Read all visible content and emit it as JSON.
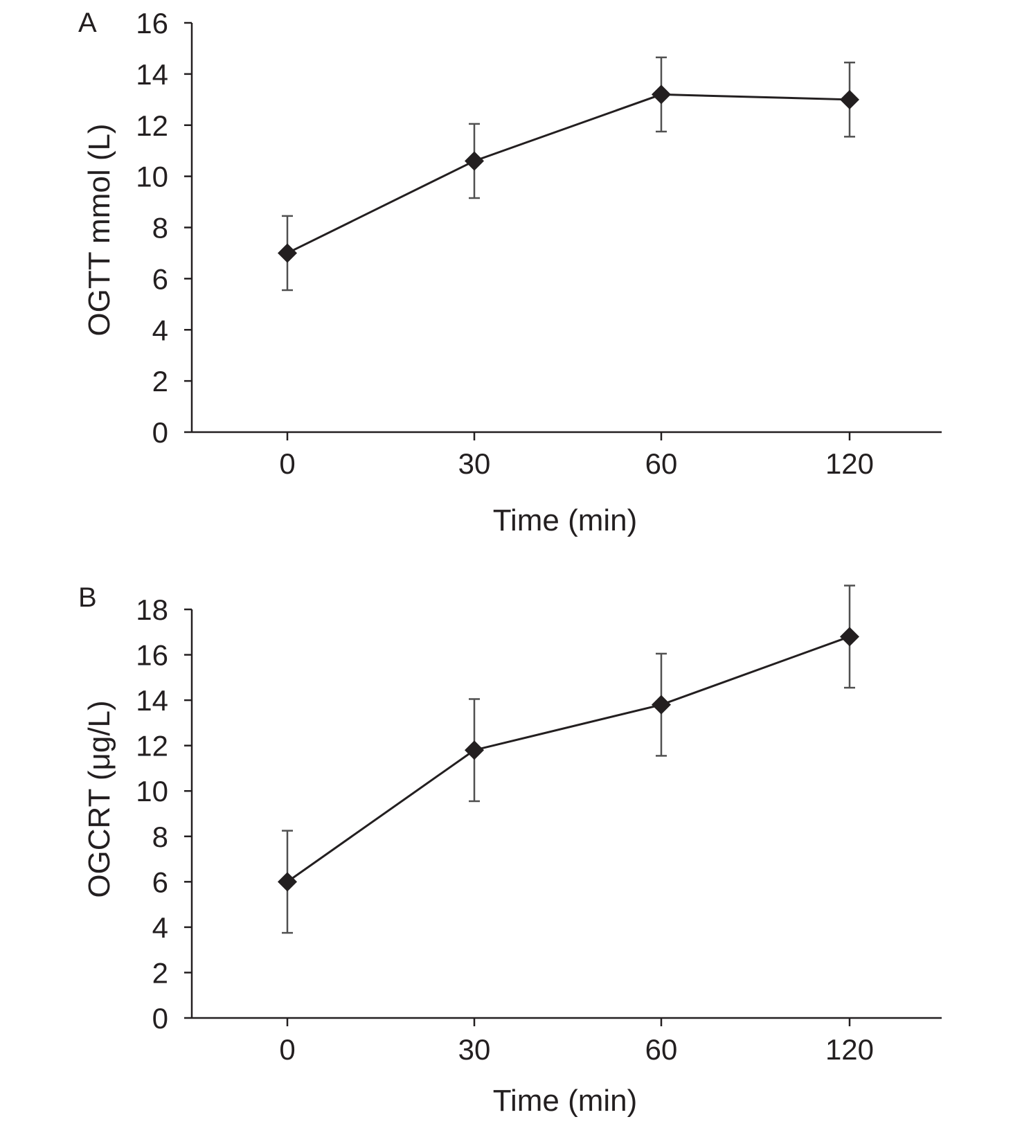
{
  "chart_data": [
    {
      "type": "line",
      "panel_label": "A",
      "categories": [
        "0",
        "30",
        "60",
        "120"
      ],
      "series": [
        {
          "values": [
            7.0,
            10.6,
            13.2,
            13.0
          ],
          "error": [
            1.45,
            1.45,
            1.45,
            1.45
          ]
        }
      ],
      "xlabel": "Time (min)",
      "ylabel": "OGTT mmol (L)",
      "ylim": [
        0,
        16
      ],
      "yticks": [
        "0",
        "2",
        "4",
        "6",
        "8",
        "10",
        "12",
        "14",
        "16"
      ],
      "marker": "diamond",
      "grid": false,
      "legend": "none",
      "colors": {
        "line": "#231f20",
        "marker": "#231f20",
        "error_bar": "#505050"
      }
    },
    {
      "type": "line",
      "panel_label": "B",
      "categories": [
        "0",
        "30",
        "60",
        "120"
      ],
      "series": [
        {
          "values": [
            6.0,
            11.8,
            13.8,
            16.8
          ],
          "error": [
            2.25,
            2.25,
            2.25,
            2.25
          ]
        }
      ],
      "xlabel": "Time (min)",
      "ylabel": "OGCRT (μg/L)",
      "ylim": [
        0,
        18
      ],
      "yticks": [
        "0",
        "2",
        "4",
        "6",
        "8",
        "10",
        "12",
        "14",
        "16",
        "18"
      ],
      "marker": "diamond",
      "grid": false,
      "legend": "none",
      "colors": {
        "line": "#231f20",
        "marker": "#231f20",
        "error_bar": "#505050"
      }
    }
  ]
}
